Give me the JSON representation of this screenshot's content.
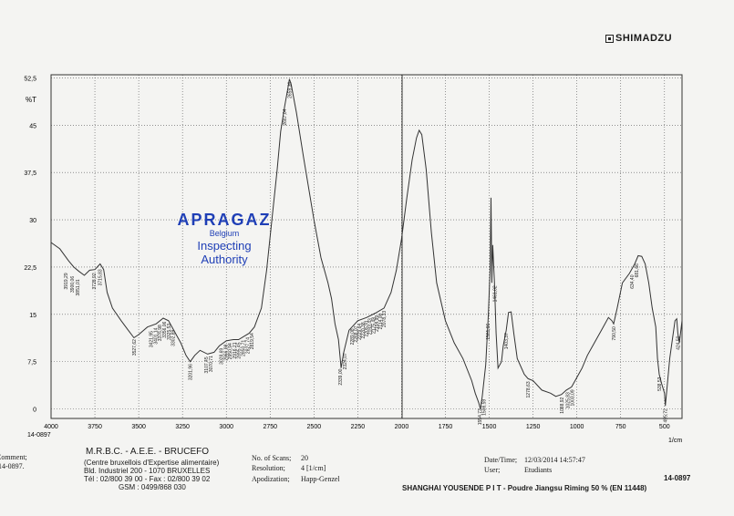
{
  "brand": {
    "name": "SHIMADZU",
    "logo_icon": "shimadzu-logo-icon"
  },
  "stamp": {
    "title": "APRAGAZ",
    "country": "Belgium",
    "line1": "Inspecting",
    "line2": "Authority",
    "color": "#1f3fb6"
  },
  "chart_data": {
    "type": "line",
    "ylabel": "%T",
    "xlabel": "1/cm",
    "xlim": [
      4000,
      400
    ],
    "ylim": [
      -1.5,
      53
    ],
    "x_inverted": true,
    "grid": true,
    "yticks": [
      {
        "v": 52.5,
        "t": "52,5"
      },
      {
        "v": 45,
        "t": "45"
      },
      {
        "v": 37.5,
        "t": "37,5"
      },
      {
        "v": 30,
        "t": "30"
      },
      {
        "v": 22.5,
        "t": "22,5"
      },
      {
        "v": 15,
        "t": "15"
      },
      {
        "v": 7.5,
        "t": "7,5"
      },
      {
        "v": 0,
        "t": "0"
      }
    ],
    "xticks": [
      {
        "v": 4000,
        "t": "4000"
      },
      {
        "v": 3750,
        "t": "3750"
      },
      {
        "v": 3500,
        "t": "3500"
      },
      {
        "v": 3250,
        "t": "3250"
      },
      {
        "v": 3000,
        "t": "3000"
      },
      {
        "v": 2750,
        "t": "2750"
      },
      {
        "v": 2500,
        "t": "2500"
      },
      {
        "v": 2250,
        "t": "2250"
      },
      {
        "v": 2000,
        "t": "2000"
      },
      {
        "v": 1750,
        "t": "1750"
      },
      {
        "v": 1500,
        "t": "1500"
      },
      {
        "v": 1250,
        "t": "1250"
      },
      {
        "v": 1000,
        "t": "1000"
      },
      {
        "v": 750,
        "t": "750"
      },
      {
        "v": 500,
        "t": "500"
      }
    ],
    "series": [
      {
        "color": "#333333",
        "points": [
          [
            4000,
            26.4
          ],
          [
            3950,
            25.4
          ],
          [
            3900,
            23.5
          ],
          [
            3870,
            22.5
          ],
          [
            3840,
            21.8
          ],
          [
            3810,
            21.2
          ],
          [
            3780,
            22.0
          ],
          [
            3750,
            22.1
          ],
          [
            3720,
            23.0
          ],
          [
            3700,
            22.1
          ],
          [
            3680,
            18.5
          ],
          [
            3650,
            16.0
          ],
          [
            3600,
            14.0
          ],
          [
            3560,
            12.5
          ],
          [
            3527,
            11.3
          ],
          [
            3500,
            11.8
          ],
          [
            3450,
            13.0
          ],
          [
            3400,
            13.5
          ],
          [
            3360,
            14.4
          ],
          [
            3330,
            14.0
          ],
          [
            3300,
            12.5
          ],
          [
            3260,
            10.5
          ],
          [
            3230,
            8.5
          ],
          [
            3206,
            7.5
          ],
          [
            3180,
            8.5
          ],
          [
            3150,
            9.3
          ],
          [
            3107,
            8.7
          ],
          [
            3070,
            9.0
          ],
          [
            3040,
            10.0
          ],
          [
            3000,
            10.8
          ],
          [
            2960,
            11.0
          ],
          [
            2930,
            11.0
          ],
          [
            2900,
            11.5
          ],
          [
            2870,
            12.0
          ],
          [
            2840,
            13.0
          ],
          [
            2800,
            16.0
          ],
          [
            2770,
            22.0
          ],
          [
            2740,
            30.0
          ],
          [
            2710,
            38.0
          ],
          [
            2690,
            44.0
          ],
          [
            2667,
            48.0
          ],
          [
            2648,
            51.0
          ],
          [
            2640,
            52.3
          ],
          [
            2630,
            51.5
          ],
          [
            2600,
            47.0
          ],
          [
            2560,
            40.0
          ],
          [
            2500,
            30.0
          ],
          [
            2460,
            24.0
          ],
          [
            2420,
            20.0
          ],
          [
            2400,
            17.5
          ],
          [
            2380,
            13.5
          ],
          [
            2360,
            11.0
          ],
          [
            2345,
            6.5
          ],
          [
            2330,
            9.0
          ],
          [
            2300,
            12.5
          ],
          [
            2250,
            14.0
          ],
          [
            2200,
            14.5
          ],
          [
            2150,
            15.2
          ],
          [
            2100,
            16.0
          ],
          [
            2060,
            18.5
          ],
          [
            2030,
            22.0
          ],
          [
            2000,
            27.0
          ],
          [
            1970,
            33.5
          ],
          [
            1940,
            39.5
          ],
          [
            1915,
            43.0
          ],
          [
            1900,
            44.2
          ],
          [
            1885,
            43.5
          ],
          [
            1860,
            38.0
          ],
          [
            1830,
            28.0
          ],
          [
            1800,
            20.0
          ],
          [
            1750,
            14.0
          ],
          [
            1700,
            10.5
          ],
          [
            1650,
            8.0
          ],
          [
            1600,
            4.5
          ],
          [
            1580,
            2.5
          ],
          [
            1560,
            1.0
          ],
          [
            1550,
            0.0
          ],
          [
            1540,
            2.0
          ],
          [
            1520,
            7.0
          ],
          [
            1505,
            15.0
          ],
          [
            1495,
            22.0
          ],
          [
            1490,
            33.5
          ],
          [
            1485,
            20.0
          ],
          [
            1480,
            26.0
          ],
          [
            1470,
            20.0
          ],
          [
            1461,
            12.0
          ],
          [
            1450,
            6.5
          ],
          [
            1430,
            7.5
          ],
          [
            1420,
            10.0
          ],
          [
            1403,
            12.5
          ],
          [
            1390,
            15.3
          ],
          [
            1375,
            15.4
          ],
          [
            1360,
            12.0
          ],
          [
            1340,
            8.0
          ],
          [
            1300,
            5.5
          ],
          [
            1278,
            4.8
          ],
          [
            1250,
            4.5
          ],
          [
            1200,
            3.0
          ],
          [
            1150,
            2.5
          ],
          [
            1120,
            2.0
          ],
          [
            1088,
            2.3
          ],
          [
            1060,
            3.0
          ],
          [
            1030,
            3.5
          ],
          [
            1000,
            5.0
          ],
          [
            970,
            6.5
          ],
          [
            940,
            8.5
          ],
          [
            900,
            10.5
          ],
          [
            860,
            12.5
          ],
          [
            820,
            14.5
          ],
          [
            800,
            14.0
          ],
          [
            790,
            13.5
          ],
          [
            770,
            16.0
          ],
          [
            740,
            20.0
          ],
          [
            700,
            21.5
          ],
          [
            670,
            23.0
          ],
          [
            650,
            24.3
          ],
          [
            630,
            24.2
          ],
          [
            610,
            23.0
          ],
          [
            590,
            20.0
          ],
          [
            570,
            16.0
          ],
          [
            550,
            13.0
          ],
          [
            540,
            8.0
          ],
          [
            530,
            5.5
          ],
          [
            516,
            4.0
          ],
          [
            500,
            2.5
          ],
          [
            495,
            0.5
          ],
          [
            480,
            5.0
          ],
          [
            470,
            8.0
          ],
          [
            455,
            11.0
          ],
          [
            440,
            14.0
          ],
          [
            430,
            14.3
          ],
          [
            424,
            12.0
          ],
          [
            415,
            10.5
          ],
          [
            400,
            14.0
          ]
        ]
      }
    ],
    "peak_labels": [
      {
        "x": 3916,
        "y": 22.0,
        "t": "3919,29"
      },
      {
        "x": 3880,
        "y": 21.5,
        "t": "3900,06"
      },
      {
        "x": 3848,
        "y": 21.0,
        "t": "3851,01"
      },
      {
        "x": 3755,
        "y": 22.0,
        "t": "3728,92"
      },
      {
        "x": 3722,
        "y": 22.6,
        "t": "3715,83"
      },
      {
        "x": 3527,
        "y": 11.5,
        "t": "3527,62"
      },
      {
        "x": 3430,
        "y": 12.8,
        "t": "3421,95"
      },
      {
        "x": 3405,
        "y": 13.3,
        "t": "3401,14"
      },
      {
        "x": 3380,
        "y": 13.8,
        "t": "3376,98"
      },
      {
        "x": 3355,
        "y": 14.3,
        "t": "3356,06"
      },
      {
        "x": 3330,
        "y": 14.0,
        "t": "3325,53"
      },
      {
        "x": 3306,
        "y": 13.0,
        "t": "3302,89"
      },
      {
        "x": 3206,
        "y": 7.6,
        "t": "3201,96"
      },
      {
        "x": 3115,
        "y": 8.7,
        "t": "3107,45"
      },
      {
        "x": 3090,
        "y": 8.9,
        "t": "3070,71"
      },
      {
        "x": 3030,
        "y": 10.1,
        "t": "3028,69"
      },
      {
        "x": 3005,
        "y": 10.7,
        "t": "2966,98"
      },
      {
        "x": 2980,
        "y": 10.9,
        "t": "2950,94"
      },
      {
        "x": 2955,
        "y": 11.0,
        "t": "2916,21"
      },
      {
        "x": 2930,
        "y": 11.0,
        "t": "2895,45"
      },
      {
        "x": 2905,
        "y": 11.4,
        "t": "2850,71"
      },
      {
        "x": 2880,
        "y": 11.8,
        "t": "2827,74"
      },
      {
        "x": 2855,
        "y": 12.5,
        "t": "2819,54"
      },
      {
        "x": 2667,
        "y": 48.0,
        "t": "2667,04"
      },
      {
        "x": 2640,
        "y": 52.3,
        "t": "2659,36"
      },
      {
        "x": 2350,
        "y": 6.8,
        "t": "2339,00"
      },
      {
        "x": 2325,
        "y": 9.3,
        "t": "2324,07"
      },
      {
        "x": 2282,
        "y": 13.2,
        "t": "2289,08"
      },
      {
        "x": 2262,
        "y": 13.6,
        "t": "2268,07"
      },
      {
        "x": 2242,
        "y": 14.0,
        "t": "2229,64"
      },
      {
        "x": 2222,
        "y": 14.2,
        "t": "2220,38"
      },
      {
        "x": 2202,
        "y": 14.5,
        "t": "2205,91"
      },
      {
        "x": 2182,
        "y": 14.8,
        "t": "2193,43"
      },
      {
        "x": 2162,
        "y": 15.0,
        "t": "2175,48"
      },
      {
        "x": 2142,
        "y": 15.3,
        "t": "2154,99"
      },
      {
        "x": 2122,
        "y": 15.6,
        "t": "2114,00"
      },
      {
        "x": 2102,
        "y": 16.0,
        "t": "2078,33"
      },
      {
        "x": 1556,
        "y": 0.5,
        "t": "1554,73"
      },
      {
        "x": 1532,
        "y": 2.0,
        "t": "1508,59"
      },
      {
        "x": 1508,
        "y": 14.0,
        "t": "1501,66"
      },
      {
        "x": 1470,
        "y": 20.0,
        "t": "1461,02"
      },
      {
        "x": 1403,
        "y": 12.5,
        "t": "1403,37"
      },
      {
        "x": 1278,
        "y": 4.8,
        "t": "1278,63"
      },
      {
        "x": 1088,
        "y": 2.3,
        "t": "1088,92"
      },
      {
        "x": 1052,
        "y": 3.1,
        "t": "1025,83"
      },
      {
        "x": 1028,
        "y": 3.5,
        "t": "1003,09"
      },
      {
        "x": 790,
        "y": 13.5,
        "t": "790,50"
      },
      {
        "x": 686,
        "y": 21.7,
        "t": "634,40"
      },
      {
        "x": 660,
        "y": 23.5,
        "t": "681,66"
      },
      {
        "x": 530,
        "y": 5.5,
        "t": "538,53"
      },
      {
        "x": 495,
        "y": 0.5,
        "t": "495,72"
      },
      {
        "x": 424,
        "y": 12.0,
        "t": "424,50"
      }
    ]
  },
  "header": {
    "spectrum_id": "14-0897"
  },
  "footer": {
    "comment_label": "Comment;",
    "comment_value": "14-0897.",
    "lab_name": "M.R.B.C. - A.E.E. - BRUCEFO",
    "lab_desc": "(Centre bruxellois d'Expertise alimentaire)",
    "lab_address": "Bld. Industriel 200 - 1070 BRUXELLES",
    "lab_phone": "Tél : 02/800 39 00 - Fax : 02/800 39 02",
    "lab_gsm": "GSM : 0499/868 030",
    "scans_label": "No. of Scans;",
    "scans_value": "20",
    "resolution_label": "Resolution;",
    "resolution_value": "4 [1/cm]",
    "apodization_label": "Apodization;",
    "apodization_value": "Happ-Genzel",
    "datetime_label": "Date/Time;",
    "datetime_value": "12/03/2014 14:57:47",
    "user_label": "User;",
    "user_value": "Etudiants",
    "sample_id": "14-0897",
    "sample_desc": "SHANGHAI YOUSENDE P I T - Poudre Jiangsu Riming 50 % (EN 11448)"
  }
}
